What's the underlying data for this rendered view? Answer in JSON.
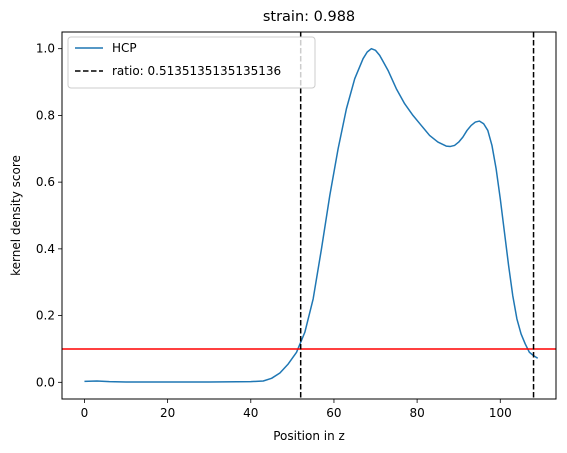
{
  "chart_data": {
    "type": "line",
    "title": "strain: 0.988",
    "xlabel": "Position in z",
    "ylabel": "kernel density score",
    "xlim": [
      -5.4,
      113.4
    ],
    "ylim": [
      -0.05,
      1.05
    ],
    "xticks": [
      0,
      20,
      40,
      60,
      80,
      100
    ],
    "xtick_labels": [
      "0",
      "20",
      "40",
      "60",
      "80",
      "100"
    ],
    "yticks": [
      0.0,
      0.2,
      0.4,
      0.6,
      0.8,
      1.0
    ],
    "ytick_labels": [
      "0.0",
      "0.2",
      "0.4",
      "0.6",
      "0.8",
      "1.0"
    ],
    "grid": false,
    "legend_position": "top-left",
    "series": [
      {
        "name": "HCP",
        "color": "#1f77b4",
        "style": "solid",
        "x": [
          0,
          3,
          6,
          10,
          20,
          30,
          40,
          43,
          45,
          47,
          49,
          51,
          53,
          55,
          57,
          59,
          61,
          63,
          65,
          67,
          68,
          69,
          70,
          71,
          73,
          75,
          77,
          79,
          81,
          83,
          85,
          87,
          88,
          89,
          90,
          91,
          92,
          93,
          94,
          95,
          96,
          97,
          98,
          99,
          100,
          101,
          102,
          103,
          104,
          105,
          106,
          107,
          108,
          109
        ],
        "y": [
          0.003,
          0.004,
          0.002,
          0.001,
          0.001,
          0.001,
          0.002,
          0.004,
          0.012,
          0.028,
          0.055,
          0.09,
          0.15,
          0.25,
          0.4,
          0.56,
          0.7,
          0.82,
          0.91,
          0.97,
          0.99,
          1.0,
          0.995,
          0.98,
          0.935,
          0.88,
          0.835,
          0.8,
          0.77,
          0.74,
          0.72,
          0.708,
          0.707,
          0.71,
          0.72,
          0.735,
          0.755,
          0.77,
          0.78,
          0.783,
          0.775,
          0.755,
          0.71,
          0.64,
          0.55,
          0.45,
          0.35,
          0.26,
          0.19,
          0.145,
          0.115,
          0.09,
          0.08,
          0.072
        ]
      }
    ],
    "vlines": [
      {
        "name": "ratio: 0.5135135135135136",
        "x": 52,
        "color": "#000000",
        "style": "dashed"
      },
      {
        "x": 108,
        "color": "#000000",
        "style": "dashed"
      }
    ],
    "hlines": [
      {
        "y": 0.1,
        "color": "#ff0000",
        "style": "solid"
      }
    ],
    "legend": [
      {
        "label": "HCP",
        "color": "#1f77b4",
        "style": "solid"
      },
      {
        "label": "ratio: 0.5135135135135136",
        "color": "#000000",
        "style": "dashed"
      }
    ]
  }
}
